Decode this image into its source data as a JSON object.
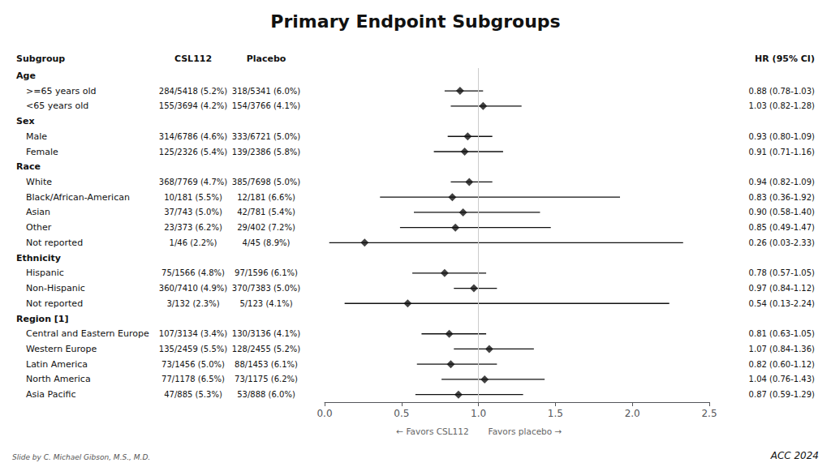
{
  "chart_data": {
    "type": "forest",
    "title": "Primary Endpoint Subgroups",
    "columns": [
      "Subgroup",
      "CSL112",
      "Placebo",
      "HR (95% CI)"
    ],
    "categories": [
      "Age",
      ">=65 years old",
      "<65 years old",
      "Sex",
      "Male",
      "Female",
      "Race",
      "White",
      "Black/African-American",
      "Asian",
      "Other",
      "Not reported",
      "Ethnicity",
      "Hispanic",
      "Non-Hispanic",
      "Not reported",
      "Region [1]",
      "Central and Eastern Europe",
      "Western Europe",
      "Latin America",
      "North America",
      "Asia Pacific"
    ],
    "values": [
      null,
      0.88,
      1.03,
      null,
      0.93,
      0.91,
      null,
      0.94,
      0.83,
      0.9,
      0.85,
      0.26,
      null,
      0.78,
      0.97,
      0.54,
      null,
      0.81,
      1.07,
      0.82,
      1.04,
      0.87
    ],
    "lo": [
      null,
      0.78,
      0.82,
      null,
      0.8,
      0.71,
      null,
      0.82,
      0.36,
      0.58,
      0.49,
      0.03,
      null,
      0.57,
      0.84,
      0.13,
      null,
      0.63,
      0.84,
      0.6,
      0.76,
      0.59
    ],
    "hi": [
      null,
      1.03,
      1.28,
      null,
      1.09,
      1.16,
      null,
      1.09,
      1.92,
      1.4,
      1.47,
      2.33,
      null,
      1.05,
      1.12,
      2.24,
      null,
      1.05,
      1.36,
      1.12,
      1.43,
      1.29
    ],
    "value_labels": [
      null,
      "0.88 (0.78-1.03)",
      "1.03 (0.82-1.28)",
      null,
      "0.93 (0.80-1.09)",
      "0.91 (0.71-1.16)",
      null,
      "0.94 (0.82-1.09)",
      "0.83 (0.36-1.92)",
      "0.90 (0.58-1.40)",
      "0.85 (0.49-1.47)",
      "0.26 (0.03-2.33)",
      null,
      "0.78 (0.57-1.05)",
      "0.97 (0.84-1.12)",
      "0.54 (0.13-2.24)",
      null,
      "0.81 (0.63-1.05)",
      "1.07 (0.84-1.36)",
      "0.82 (0.60-1.12)",
      "1.04 (0.76-1.43)",
      "0.87 (0.59-1.29)"
    ],
    "csl": [
      null,
      "284/5418 (5.2%)",
      "155/3694 (4.2%)",
      null,
      "314/6786 (4.6%)",
      "125/2326 (5.4%)",
      null,
      "368/7769 (4.7%)",
      "10/181 (5.5%)",
      "37/743 (5.0%)",
      "23/373 (6.2%)",
      "1/46 (2.2%)",
      null,
      "75/1566 (4.8%)",
      "360/7410 (4.9%)",
      "3/132 (2.3%)",
      null,
      "107/3134 (3.4%)",
      "135/2459 (5.5%)",
      "73/1456 (5.0%)",
      "77/1178 (6.5%)",
      "47/885 (5.3%)"
    ],
    "placebo": [
      null,
      "318/5341 (6.0%)",
      "154/3766 (4.1%)",
      null,
      "333/6721 (5.0%)",
      "139/2386 (5.8%)",
      null,
      "385/7698 (5.0%)",
      "12/181 (6.6%)",
      "42/781 (5.4%)",
      "29/402 (7.2%)",
      "4/45 (8.9%)",
      null,
      "97/1596 (6.1%)",
      "370/7383 (5.0%)",
      "5/123 (4.1%)",
      null,
      "130/3136 (4.1%)",
      "128/2455 (5.2%)",
      "88/1453 (6.1%)",
      "73/1175 (6.2%)",
      "53/888 (6.0%)"
    ],
    "color": "#111111",
    "marker": "diamond",
    "xlim": [
      0.0,
      2.5
    ],
    "xticks": [
      {
        "value": 0.0,
        "label": "0.0"
      },
      0.5,
      {
        "value": 1.0,
        "label": "1.0"
      },
      1.5,
      {
        "value": 2.0,
        "label": "2.0"
      },
      2.5
    ],
    "x_ref": 1.0,
    "xlabel_left": "← Favors CSL112",
    "xlabel_right": "Favors placebo →",
    "footer_left": "Slide by C. Michael Gibson, M.S., M.D.",
    "footer_right": "ACC 2024",
    "grid": false
  }
}
